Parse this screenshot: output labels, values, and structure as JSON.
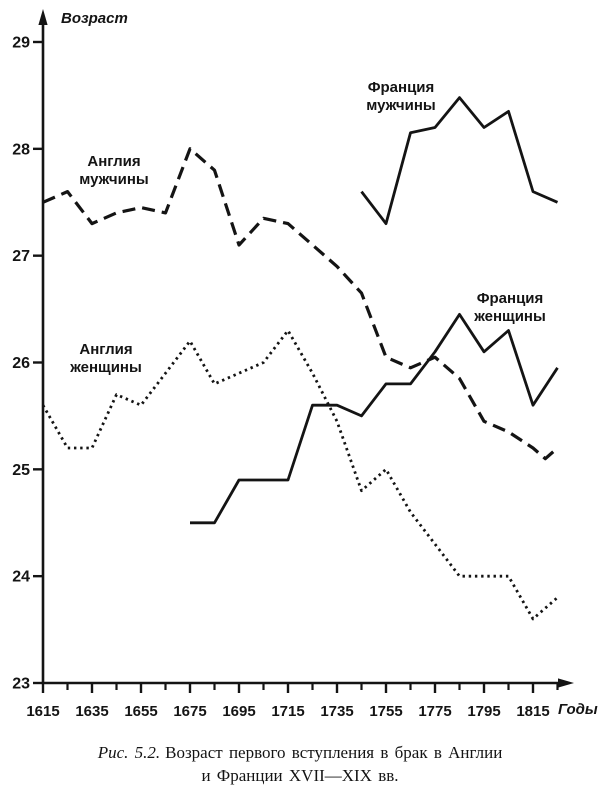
{
  "figure": {
    "caption_prefix": "Рис. 5.2.",
    "caption_line1": "Возраст первого вступления в брак в Англии",
    "caption_line2": "и Франции XVII—XIX вв."
  },
  "chart_data": {
    "type": "line",
    "title": "Возраст первого вступления в брак в Англии и Франции XVII—XIX вв.",
    "ylabel": "Возраст",
    "xlabel": "Годы",
    "ylim": [
      23,
      29
    ],
    "xlim": [
      1615,
      1830
    ],
    "grid": false,
    "legend_position": "inline-labels",
    "yticks": [
      23,
      24,
      25,
      26,
      27,
      28,
      29
    ],
    "xticks_major": [
      1615,
      1635,
      1655,
      1675,
      1695,
      1715,
      1735,
      1755,
      1775,
      1795,
      1815
    ],
    "xticks_minor": [
      1625,
      1645,
      1665,
      1685,
      1705,
      1725,
      1745,
      1765,
      1785,
      1805,
      1825
    ],
    "ink_color": "#141414",
    "series": [
      {
        "name": "Англия мужчины",
        "label_lines": [
          "Англия",
          "мужчины"
        ],
        "style": "dashed",
        "x": [
          1615,
          1625,
          1635,
          1645,
          1655,
          1665,
          1675,
          1685,
          1695,
          1705,
          1715,
          1725,
          1735,
          1745,
          1755,
          1765,
          1775,
          1785,
          1795,
          1805,
          1815,
          1820,
          1825
        ],
        "y": [
          27.5,
          27.6,
          27.3,
          27.4,
          27.45,
          27.4,
          28.0,
          27.8,
          27.1,
          27.35,
          27.3,
          27.1,
          26.9,
          26.65,
          26.05,
          25.95,
          26.05,
          25.85,
          25.45,
          25.35,
          25.2,
          25.1,
          25.2
        ]
      },
      {
        "name": "Англия женщины",
        "label_lines": [
          "Англия",
          "женщины"
        ],
        "style": "dotted",
        "x": [
          1615,
          1625,
          1635,
          1645,
          1655,
          1665,
          1675,
          1685,
          1695,
          1705,
          1715,
          1725,
          1735,
          1745,
          1755,
          1765,
          1775,
          1785,
          1795,
          1805,
          1815,
          1825
        ],
        "y": [
          25.6,
          25.2,
          25.2,
          25.7,
          25.6,
          25.9,
          26.2,
          25.8,
          25.9,
          26.0,
          26.3,
          25.9,
          25.45,
          24.8,
          25.0,
          24.6,
          24.3,
          24.0,
          24.0,
          24.0,
          23.6,
          23.8
        ]
      },
      {
        "name": "Франция мужчины",
        "label_lines": [
          "Франция",
          "мужчины"
        ],
        "style": "solid",
        "x": [
          1745,
          1755,
          1765,
          1775,
          1785,
          1795,
          1805,
          1815,
          1825
        ],
        "y": [
          27.6,
          27.3,
          28.15,
          28.2,
          28.48,
          28.2,
          28.35,
          27.6,
          27.5
        ]
      },
      {
        "name": "Франция женщины",
        "label_lines": [
          "Франция",
          "женщины"
        ],
        "style": "solid",
        "x": [
          1675,
          1685,
          1695,
          1705,
          1715,
          1725,
          1735,
          1745,
          1755,
          1765,
          1775,
          1785,
          1795,
          1805,
          1815,
          1825
        ],
        "y": [
          24.5,
          24.5,
          24.9,
          24.9,
          24.9,
          25.6,
          25.6,
          25.5,
          25.8,
          25.8,
          26.1,
          26.45,
          26.1,
          26.3,
          25.6,
          25.95
        ]
      }
    ]
  }
}
